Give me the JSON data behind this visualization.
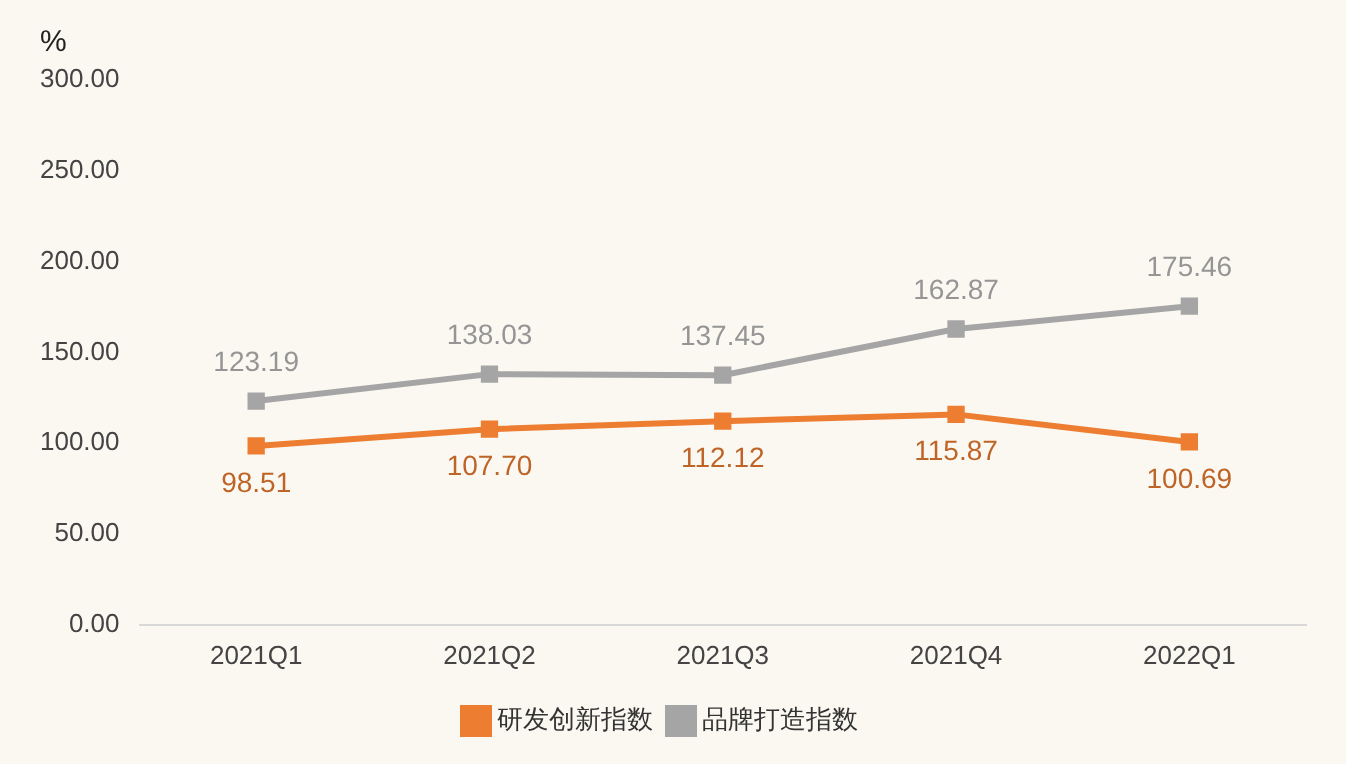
{
  "chart_data": {
    "type": "line",
    "ylabel": "%",
    "categories": [
      "2021Q1",
      "2021Q2",
      "2021Q3",
      "2021Q4",
      "2022Q1"
    ],
    "series": [
      {
        "name": "研发创新指数",
        "color": "#ed7d31",
        "values": [
          98.51,
          107.7,
          112.12,
          115.87,
          100.69
        ],
        "value_labels": [
          "98.51",
          "107.70",
          "112.12",
          "115.87",
          "100.69"
        ]
      },
      {
        "name": "品牌打造指数",
        "color": "#a5a5a5",
        "values": [
          123.19,
          138.03,
          137.45,
          162.87,
          175.46
        ],
        "value_labels": [
          "123.19",
          "138.03",
          "137.45",
          "162.87",
          "175.46"
        ]
      }
    ],
    "ylim": [
      0,
      300
    ],
    "yticks": [
      {
        "value": 0,
        "label": "0.00"
      },
      {
        "value": 50,
        "label": "50.00"
      },
      {
        "value": 100,
        "label": "100.00"
      },
      {
        "value": 150,
        "label": "150.00"
      },
      {
        "value": 200,
        "label": "200.00"
      },
      {
        "value": 250,
        "label": "250.00"
      },
      {
        "value": 300,
        "label": "300.00"
      }
    ],
    "grid": false,
    "legend": "bottom",
    "marker": "square",
    "line_style": "solid"
  }
}
